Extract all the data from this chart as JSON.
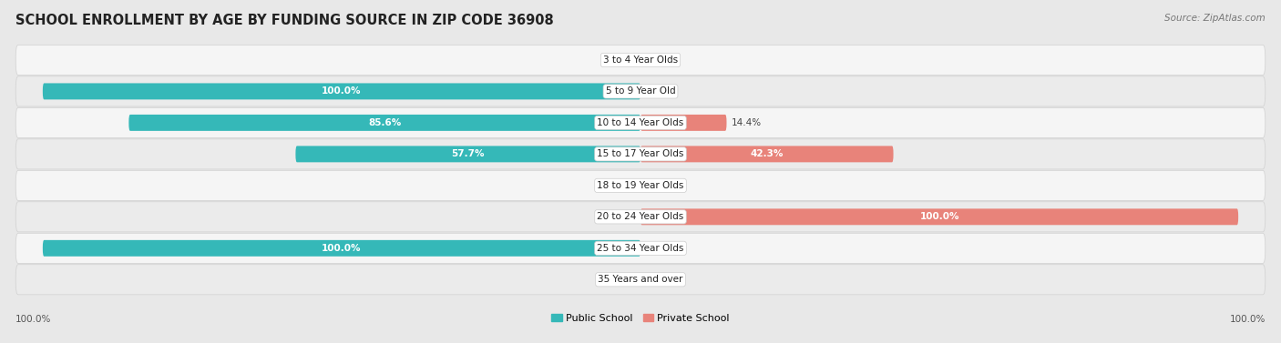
{
  "title": "SCHOOL ENROLLMENT BY AGE BY FUNDING SOURCE IN ZIP CODE 36908",
  "source": "Source: ZipAtlas.com",
  "categories": [
    "3 to 4 Year Olds",
    "5 to 9 Year Old",
    "10 to 14 Year Olds",
    "15 to 17 Year Olds",
    "18 to 19 Year Olds",
    "20 to 24 Year Olds",
    "25 to 34 Year Olds",
    "35 Years and over"
  ],
  "public_values": [
    0.0,
    100.0,
    85.6,
    57.7,
    0.0,
    0.0,
    100.0,
    0.0
  ],
  "private_values": [
    0.0,
    0.0,
    14.4,
    42.3,
    0.0,
    100.0,
    0.0,
    0.0
  ],
  "public_color": "#35b8b8",
  "private_color": "#e8837a",
  "public_label": "Public School",
  "private_label": "Private School",
  "background_color": "#e8e8e8",
  "row_color_odd": "#f2f2f2",
  "row_color_even": "#e8e8e8",
  "x_min": -100.0,
  "x_max": 100.0,
  "x_left_label": "100.0%",
  "x_right_label": "100.0%",
  "title_fontsize": 10.5,
  "source_fontsize": 7.5,
  "label_fontsize": 7.5,
  "category_fontsize": 7.5,
  "bar_height": 0.52
}
